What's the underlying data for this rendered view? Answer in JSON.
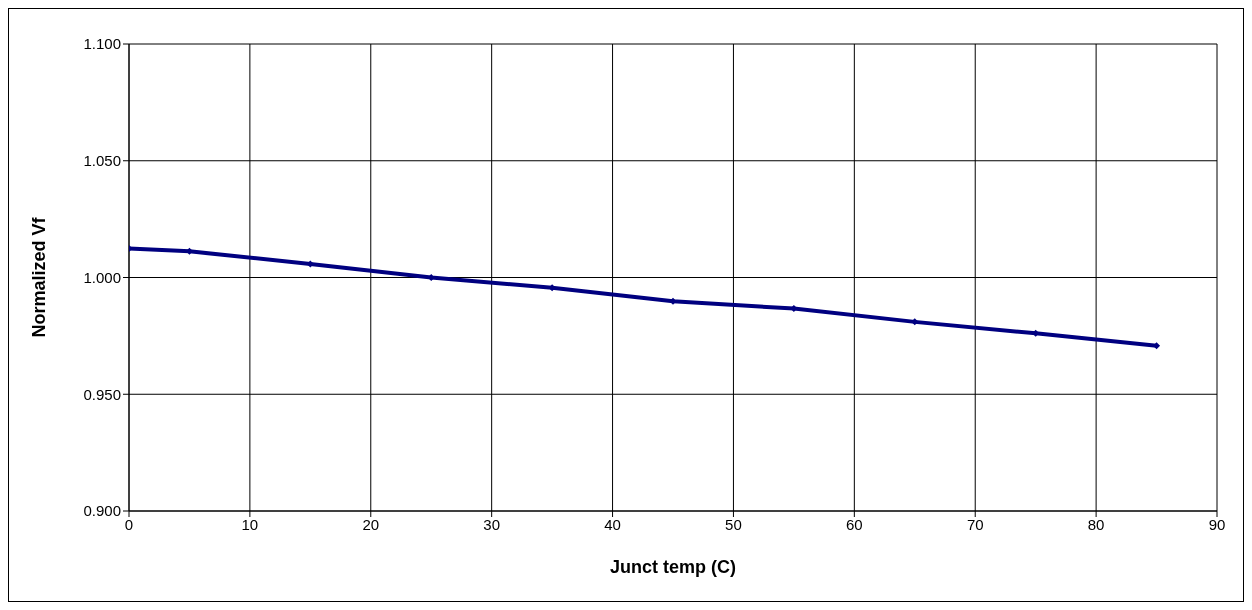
{
  "chart_data": {
    "type": "line",
    "xlabel": "Junct temp (C)",
    "ylabel": "Normalized Vf",
    "x": [
      0,
      5,
      15,
      25,
      35,
      45,
      55,
      65,
      75,
      85
    ],
    "series": [
      {
        "color": "#000080",
        "values": [
          1.0124,
          1.0112,
          1.0058,
          1.0,
          0.9956,
          0.9898,
          0.9867,
          0.981,
          0.9761,
          0.9708
        ]
      }
    ],
    "xlim": [
      0,
      90
    ],
    "xticks": [
      0,
      10,
      20,
      30,
      40,
      50,
      60,
      70,
      80,
      90
    ],
    "ylim": [
      0.9,
      1.1
    ],
    "yticks": [
      {
        "value": 0.9,
        "label": "0.900"
      },
      {
        "value": 0.95,
        "label": "0.950"
      },
      {
        "value": 1.0,
        "label": "1.000"
      },
      {
        "value": 1.05,
        "label": "1.050"
      },
      {
        "value": 1.1,
        "label": "1.100"
      }
    ],
    "grid": true,
    "marker": "diamond",
    "line_style": "solid",
    "legend": false
  }
}
